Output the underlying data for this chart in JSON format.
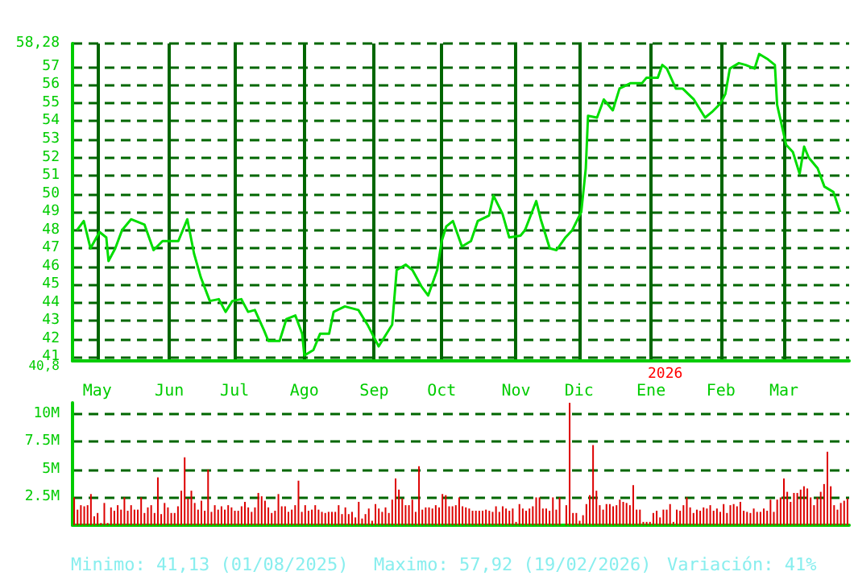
{
  "chart_data": [
    {
      "type": "line",
      "color": "#00dd00",
      "marker": "none",
      "line_style": "solid",
      "grid": true,
      "x": [
        "2025-04-22",
        "2025-04-25",
        "2025-04-28",
        "2025-05-02",
        "2025-05-05",
        "2025-05-06",
        "2025-05-09",
        "2025-05-12",
        "2025-05-16",
        "2025-05-22",
        "2025-05-26",
        "2025-05-30",
        "2025-06-06",
        "2025-06-10",
        "2025-06-13",
        "2025-06-16",
        "2025-06-20",
        "2025-06-24",
        "2025-06-27",
        "2025-06-30",
        "2025-07-04",
        "2025-07-07",
        "2025-07-10",
        "2025-07-14",
        "2025-07-16",
        "2025-07-21",
        "2025-07-24",
        "2025-07-28",
        "2025-07-31",
        "2025-08-01",
        "2025-08-05",
        "2025-08-08",
        "2025-08-12",
        "2025-08-14",
        "2025-08-19",
        "2025-08-25",
        "2025-08-29",
        "2025-09-03",
        "2025-09-05",
        "2025-09-09",
        "2025-09-11",
        "2025-09-15",
        "2025-09-18",
        "2025-09-22",
        "2025-09-25",
        "2025-09-29",
        "2025-10-01",
        "2025-10-03",
        "2025-10-06",
        "2025-10-10",
        "2025-10-14",
        "2025-10-17",
        "2025-10-22",
        "2025-10-24",
        "2025-10-28",
        "2025-10-31",
        "2025-11-05",
        "2025-11-07",
        "2025-11-12",
        "2025-11-14",
        "2025-11-18",
        "2025-11-21",
        "2025-11-25",
        "2025-11-28",
        "2025-12-02",
        "2025-12-04",
        "2025-12-05",
        "2025-12-09",
        "2025-12-12",
        "2025-12-16",
        "2025-12-19",
        "2025-12-24",
        "2025-12-29",
        "2025-12-31",
        "2026-01-05",
        "2026-01-07",
        "2026-01-09",
        "2026-01-13",
        "2026-01-16",
        "2026-01-21",
        "2026-01-26",
        "2026-01-29",
        "2026-02-02",
        "2026-02-04",
        "2026-02-06",
        "2026-02-10",
        "2026-02-13",
        "2026-02-17",
        "2026-02-19",
        "2026-02-23",
        "2026-02-26",
        "2026-02-27",
        "2026-03-03",
        "2026-03-06",
        "2026-03-09",
        "2026-03-11",
        "2026-03-13",
        "2026-03-17",
        "2026-03-20",
        "2026-03-24",
        "2026-03-27"
      ],
      "values": [
        48.0,
        48.5,
        47.0,
        47.9,
        47.6,
        46.3,
        47.0,
        48.0,
        48.6,
        48.3,
        46.9,
        47.4,
        47.4,
        48.6,
        46.7,
        45.4,
        44.1,
        44.2,
        43.5,
        44.1,
        44.2,
        43.5,
        43.6,
        42.5,
        41.9,
        41.9,
        43.1,
        43.3,
        42.3,
        41.1,
        41.4,
        42.3,
        42.3,
        43.5,
        43.8,
        43.6,
        42.8,
        41.6,
        42.0,
        42.8,
        45.8,
        46.1,
        45.8,
        44.9,
        44.4,
        45.8,
        47.4,
        48.2,
        48.5,
        47.1,
        47.4,
        48.5,
        48.8,
        49.9,
        48.9,
        47.6,
        47.7,
        48.0,
        49.6,
        48.6,
        47.0,
        46.9,
        47.6,
        48.0,
        49.0,
        51.4,
        54.3,
        54.2,
        55.2,
        54.6,
        55.8,
        56.1,
        56.1,
        56.4,
        56.4,
        57.1,
        56.9,
        55.8,
        55.8,
        55.2,
        54.2,
        54.5,
        55.0,
        55.5,
        56.9,
        57.2,
        57.1,
        56.9,
        57.7,
        57.4,
        57.1,
        54.9,
        52.7,
        52.3,
        51.1,
        52.6,
        52.0,
        51.4,
        50.4,
        50.1,
        49.0
      ],
      "xlim": [
        "2025-04-20",
        "2026-03-31"
      ],
      "xticks": [
        {
          "value": "2025-05-01",
          "label": "May"
        },
        {
          "value": "2025-06-02",
          "label": "Jun"
        },
        {
          "value": "2025-07-01",
          "label": "Jul"
        },
        {
          "value": "2025-08-01",
          "label": "Ago"
        },
        {
          "value": "2025-09-01",
          "label": "Sep"
        },
        {
          "value": "2025-10-01",
          "label": "Oct"
        },
        {
          "value": "2025-11-03",
          "label": "Nov"
        },
        {
          "value": "2025-12-01",
          "label": "Dic"
        },
        {
          "value": "2026-01-02",
          "label": "Ene"
        },
        {
          "value": "2026-02-02",
          "label": "Feb"
        },
        {
          "value": "2026-03-02",
          "label": "Mar"
        }
      ],
      "ylim": [
        40.8,
        58.28
      ],
      "yticks": [
        {
          "value": 40.8,
          "label": "40,8"
        },
        41,
        42,
        43,
        44,
        45,
        46,
        47,
        48,
        49,
        50,
        51,
        52,
        53,
        54,
        55,
        56,
        57,
        {
          "value": 58.28,
          "label": "58,28"
        }
      ],
      "annotations": [
        "2026"
      ]
    },
    {
      "type": "bar",
      "color": "#dd0000",
      "grid": "y",
      "tick_labels": "y",
      "categories": [
        null,
        null,
        null,
        null,
        null,
        null,
        null,
        null,
        null,
        null,
        null,
        null,
        null,
        null,
        null,
        null,
        null,
        null,
        null,
        null,
        null,
        null,
        null,
        null,
        null,
        null,
        null,
        null,
        null,
        null,
        null,
        null,
        null,
        null,
        null,
        null,
        null,
        null,
        null,
        null,
        null,
        null,
        null,
        null,
        null,
        null,
        null,
        null,
        null,
        null,
        null,
        null,
        null,
        null,
        null,
        null,
        null,
        null,
        null,
        null,
        null,
        null,
        null,
        null,
        null,
        null,
        null,
        null,
        null,
        null,
        null,
        null,
        null,
        null,
        null,
        null,
        null,
        null,
        null,
        null,
        null,
        null,
        null,
        null,
        null,
        null,
        null,
        null,
        null,
        null,
        null,
        null,
        null,
        null,
        null,
        null,
        null,
        null,
        null,
        null,
        null,
        null,
        null,
        null,
        null,
        null,
        null,
        null,
        null,
        null,
        null,
        null,
        null,
        null,
        null,
        null,
        null,
        null,
        null,
        null,
        null,
        null,
        null,
        null,
        null,
        null,
        null,
        null,
        null,
        null,
        null,
        null,
        null,
        null,
        null,
        null,
        null,
        null,
        null,
        null,
        null,
        null,
        null,
        null,
        null,
        null,
        null,
        null,
        null,
        null,
        null,
        null,
        null,
        null,
        null,
        null,
        null,
        null,
        null,
        null,
        null,
        null,
        null,
        null,
        null,
        null,
        null,
        null,
        null,
        null,
        null,
        null,
        null,
        null,
        null,
        null,
        null,
        null,
        null,
        null,
        null,
        null,
        null,
        null,
        null,
        null,
        null,
        null,
        null,
        null,
        null,
        null,
        null,
        null,
        null,
        null,
        null,
        null,
        null,
        null,
        null,
        null,
        null,
        null,
        null,
        null,
        null,
        null,
        null,
        null,
        null,
        null,
        null,
        null,
        null,
        null,
        null,
        null,
        null,
        null,
        null,
        null,
        null,
        null,
        null,
        null,
        null,
        null,
        null,
        null,
        null,
        null
      ],
      "values": [
        2.5,
        1.4,
        1.8,
        1.7,
        1.8,
        2.8,
        0.8,
        1.1,
        0.2,
        2.0,
        0.2,
        1.6,
        1.3,
        1.8,
        1.4,
        2.5,
        1.3,
        1.8,
        1.4,
        1.4,
        2.5,
        1.1,
        1.6,
        1.8,
        1.1,
        4.3,
        1.0,
        2.0,
        1.6,
        1.1,
        1.1,
        1.7,
        3.1,
        6.1,
        2.4,
        3.1,
        2.0,
        1.4,
        2.2,
        1.3,
        5.0,
        1.2,
        1.8,
        1.4,
        1.7,
        1.4,
        1.8,
        1.6,
        1.3,
        1.3,
        1.7,
        2.1,
        1.6,
        1.2,
        1.6,
        2.9,
        2.6,
        2.2,
        1.6,
        1.1,
        1.3,
        2.8,
        1.7,
        1.7,
        1.2,
        1.4,
        1.8,
        4.0,
        1.2,
        1.8,
        1.3,
        1.4,
        1.8,
        1.4,
        1.2,
        1.1,
        1.2,
        1.2,
        1.2,
        1.8,
        1.0,
        1.6,
        1.0,
        1.2,
        0.7,
        2.1,
        0.6,
        1.0,
        1.5,
        0.4,
        1.9,
        1.5,
        1.2,
        1.6,
        1.1,
        2.3,
        4.2,
        3.2,
        2.4,
        1.8,
        1.8,
        2.3,
        1.2,
        5.3,
        1.4,
        1.6,
        1.6,
        1.5,
        1.8,
        1.6,
        2.8,
        2.7,
        1.7,
        1.7,
        1.8,
        2.5,
        1.7,
        1.6,
        1.5,
        1.3,
        1.3,
        1.3,
        1.3,
        1.4,
        1.3,
        1.2,
        1.7,
        1.2,
        1.7,
        1.5,
        1.3,
        1.5,
        0.3,
        1.9,
        1.5,
        1.3,
        1.5,
        1.7,
        2.5,
        2.5,
        1.5,
        1.5,
        1.3,
        2.5,
        1.4,
        2.5,
        null,
        1.8,
        11.0,
        1.1,
        1.1,
        0.4,
        0.9,
        1.9,
        2.7,
        7.2,
        3.1,
        1.8,
        1.4,
        1.9,
        1.9,
        1.7,
        1.8,
        2.3,
        2.1,
        2.0,
        1.8,
        3.6,
        1.4,
        1.4,
        0.3,
        0.3,
        0.3,
        1.1,
        1.3,
        0.7,
        1.4,
        1.4,
        1.9,
        0.3,
        1.4,
        1.3,
        1.8,
        2.5,
        1.6,
        1.1,
        1.4,
        1.3,
        1.6,
        1.5,
        1.8,
        1.3,
        1.5,
        1.2,
        1.9,
        1.1,
        1.8,
        1.9,
        1.7,
        2.1,
        1.3,
        1.2,
        1.1,
        1.5,
        1.2,
        1.2,
        1.5,
        1.3,
        2.3,
        1.2,
        2.3,
        2.5,
        4.2,
        3.0,
        2.1,
        2.9,
        2.9,
        3.2,
        3.5,
        3.3,
        2.5,
        1.8,
        2.5,
        3.0,
        3.7,
        6.6,
        3.5,
        1.8,
        1.4,
        2.0,
        2.2,
        2.4
      ],
      "ylim": [
        0,
        11
      ],
      "yticks": [
        {
          "value": 2.5,
          "label": "2.5M"
        },
        {
          "value": 5,
          "label": "5M"
        },
        {
          "value": 7.5,
          "label": "7.5M"
        },
        {
          "value": 10,
          "label": "10M"
        }
      ],
      "annotations": [
        "Minimo: 41,13 (01/08/2025)",
        "Maximo: 57,92 (19/02/2026)",
        "Variación: 41%"
      ]
    }
  ]
}
